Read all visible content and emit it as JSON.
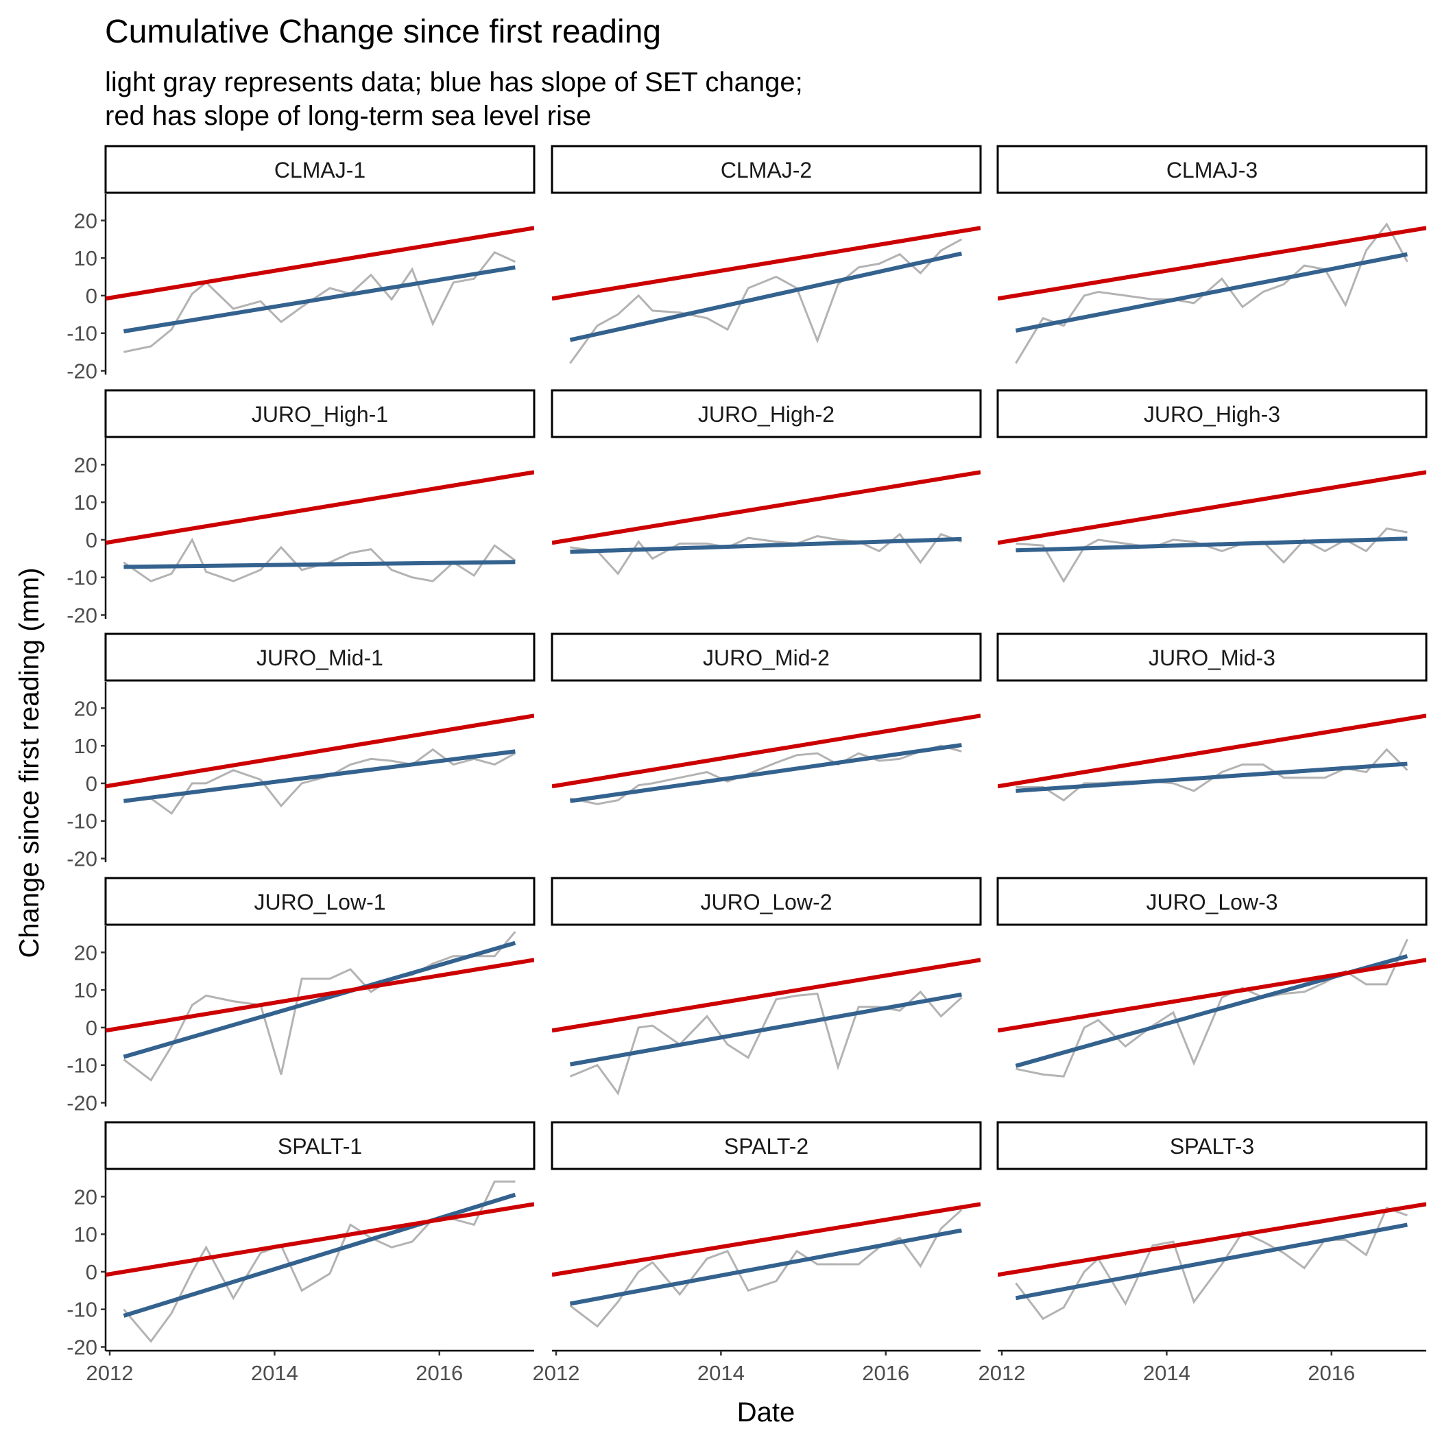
{
  "chart_data": {
    "type": "line",
    "title": "Cumulative Change since first reading",
    "subtitle_lines": [
      "light gray represents data; blue has slope of SET change;",
      "red has slope of long-term sea level rise"
    ],
    "xlabel": "Date",
    "ylabel": "Change since first reading (mm)",
    "xlim": [
      2011.95,
      2017.15
    ],
    "ylim": [
      -21,
      27
    ],
    "x_ticks": [
      2012,
      2014,
      2016
    ],
    "x_tick_labels": [
      "2012",
      "2014",
      "2016"
    ],
    "y_ticks": [
      -20,
      -10,
      0,
      10,
      20
    ],
    "y_tick_labels": [
      "-20",
      "-10",
      "0",
      "10",
      "20"
    ],
    "grid": false,
    "legend": "none",
    "colors": {
      "data": "#b3b3b3",
      "set_fit": "#34628e",
      "sea_level": "#cc0000"
    },
    "sea_level_line": {
      "x": [
        2011.95,
        2017.15
      ],
      "y": [
        -0.8,
        18
      ]
    },
    "dates": [
      2012.17,
      2012.5,
      2012.75,
      2013.0,
      2013.17,
      2013.5,
      2013.83,
      2014.08,
      2014.33,
      2014.67,
      2014.92,
      2015.17,
      2015.42,
      2015.67,
      2015.92,
      2016.17,
      2016.42,
      2016.67,
      2016.92
    ],
    "panels": [
      {
        "name": "CLMAJ-1",
        "values": [
          -15,
          -13.5,
          -9,
          0.5,
          3.5,
          -3.5,
          -1.5,
          -7,
          -3,
          2,
          0.5,
          5.5,
          -1,
          7,
          -7.5,
          3.5,
          4.5,
          11.5,
          9
        ],
        "fit": [
          -9.5,
          7.5
        ]
      },
      {
        "name": "CLMAJ-2",
        "values": [
          -18,
          -8,
          -5,
          0,
          -4,
          -4.5,
          -6,
          -9,
          2,
          5,
          2,
          -12,
          3,
          7.5,
          8.5,
          11,
          6,
          12,
          15
        ],
        "fit": [
          -11.8,
          11.2
        ]
      },
      {
        "name": "CLMAJ-3",
        "values": [
          -18,
          -6,
          -8,
          0,
          1,
          0,
          -1,
          -1,
          -2,
          4.5,
          -3,
          1,
          3,
          8,
          7,
          -2.5,
          12,
          19,
          9
        ],
        "fit": [
          -9.3,
          11
        ]
      },
      {
        "name": "JURO_High-1",
        "values": [
          -6,
          -11,
          -9,
          0,
          -8.5,
          -11,
          -8,
          -2,
          -8,
          -6,
          -3.5,
          -2.5,
          -8,
          -10,
          -11,
          -6,
          -9.5,
          -1.5,
          -5.5
        ],
        "fit": [
          -7.2,
          -5.9
        ]
      },
      {
        "name": "JURO_High-2",
        "values": [
          -2,
          -3,
          -9,
          -0.5,
          -5,
          -1,
          -1,
          -2,
          0.5,
          -0.5,
          -1,
          1,
          0,
          -0.5,
          -3,
          1.5,
          -6,
          1.5,
          -0.5
        ],
        "fit": [
          -3.2,
          0.2
        ]
      },
      {
        "name": "JURO_High-3",
        "values": [
          -1,
          -1.5,
          -11,
          -2,
          0,
          -1,
          -2,
          0,
          -0.5,
          -3,
          -1,
          -0.5,
          -6,
          0,
          -3,
          0,
          -3,
          3,
          2
        ],
        "fit": [
          -2.8,
          0.3
        ]
      },
      {
        "name": "JURO_Mid-1",
        "values": [
          -5,
          -4,
          -8,
          0,
          0,
          3.5,
          1,
          -6,
          0,
          2,
          5,
          6.5,
          6,
          5,
          9,
          5,
          6.5,
          5,
          8
        ],
        "fit": [
          -4.7,
          8.5
        ]
      },
      {
        "name": "JURO_Mid-2",
        "values": [
          -4,
          -5.5,
          -4.5,
          -0.5,
          0,
          1.5,
          3,
          0.5,
          2.5,
          5.5,
          7.5,
          8,
          5,
          8,
          6,
          6.5,
          8.5,
          10,
          8.5
        ],
        "fit": [
          -4.7,
          10.2
        ]
      },
      {
        "name": "JURO_Mid-3",
        "values": [
          -1,
          -1,
          -4.5,
          0,
          0,
          0.5,
          0.5,
          0,
          -2,
          3,
          5,
          5,
          1.5,
          1.5,
          1.5,
          4,
          3,
          9,
          3.5
        ],
        "fit": [
          -2,
          5.2
        ]
      },
      {
        "name": "JURO_Low-1",
        "values": [
          -8.5,
          -14,
          -5,
          6,
          8.5,
          7,
          6,
          -12.5,
          13,
          13,
          15.5,
          9.5,
          13,
          14,
          17,
          19,
          19,
          19,
          25.5
        ],
        "fit": [
          -7.8,
          22.5
        ]
      },
      {
        "name": "JURO_Low-2",
        "values": [
          -13,
          -10,
          -17.5,
          0,
          0.5,
          -4.5,
          3,
          -4.5,
          -8,
          7.5,
          8.5,
          9,
          -10.5,
          5.5,
          5.5,
          4.5,
          9.5,
          3,
          8
        ],
        "fit": [
          -9.8,
          8.8
        ]
      },
      {
        "name": "JURO_Low-3",
        "values": [
          -11,
          -12.5,
          -13,
          0,
          2,
          -5,
          0.5,
          4,
          -9.5,
          8,
          10.5,
          8,
          9,
          9.5,
          12,
          15,
          11.5,
          11.5,
          23.5
        ],
        "fit": [
          -10.2,
          19
        ]
      },
      {
        "name": "SPALT-1",
        "values": [
          -10,
          -18.5,
          -11,
          0,
          6.5,
          -7,
          5,
          7,
          -5,
          -0.5,
          12.5,
          9,
          6.5,
          8,
          14,
          14,
          12.5,
          24,
          24
        ],
        "fit": [
          -11.7,
          20.5
        ]
      },
      {
        "name": "SPALT-2",
        "values": [
          -9,
          -14.5,
          -8,
          0,
          2.5,
          -6,
          3.5,
          5.5,
          -5,
          -2.5,
          5.5,
          2,
          2,
          2,
          6.5,
          9,
          1.5,
          11.5,
          16.5
        ],
        "fit": [
          -8.5,
          11
        ]
      },
      {
        "name": "SPALT-3",
        "values": [
          -3,
          -12.5,
          -9.5,
          0,
          3.5,
          -8.5,
          7,
          8,
          -8,
          2,
          10.5,
          8,
          5,
          1,
          8.5,
          8.5,
          4.5,
          17,
          15
        ],
        "fit": [
          -7,
          12.5
        ]
      }
    ]
  }
}
